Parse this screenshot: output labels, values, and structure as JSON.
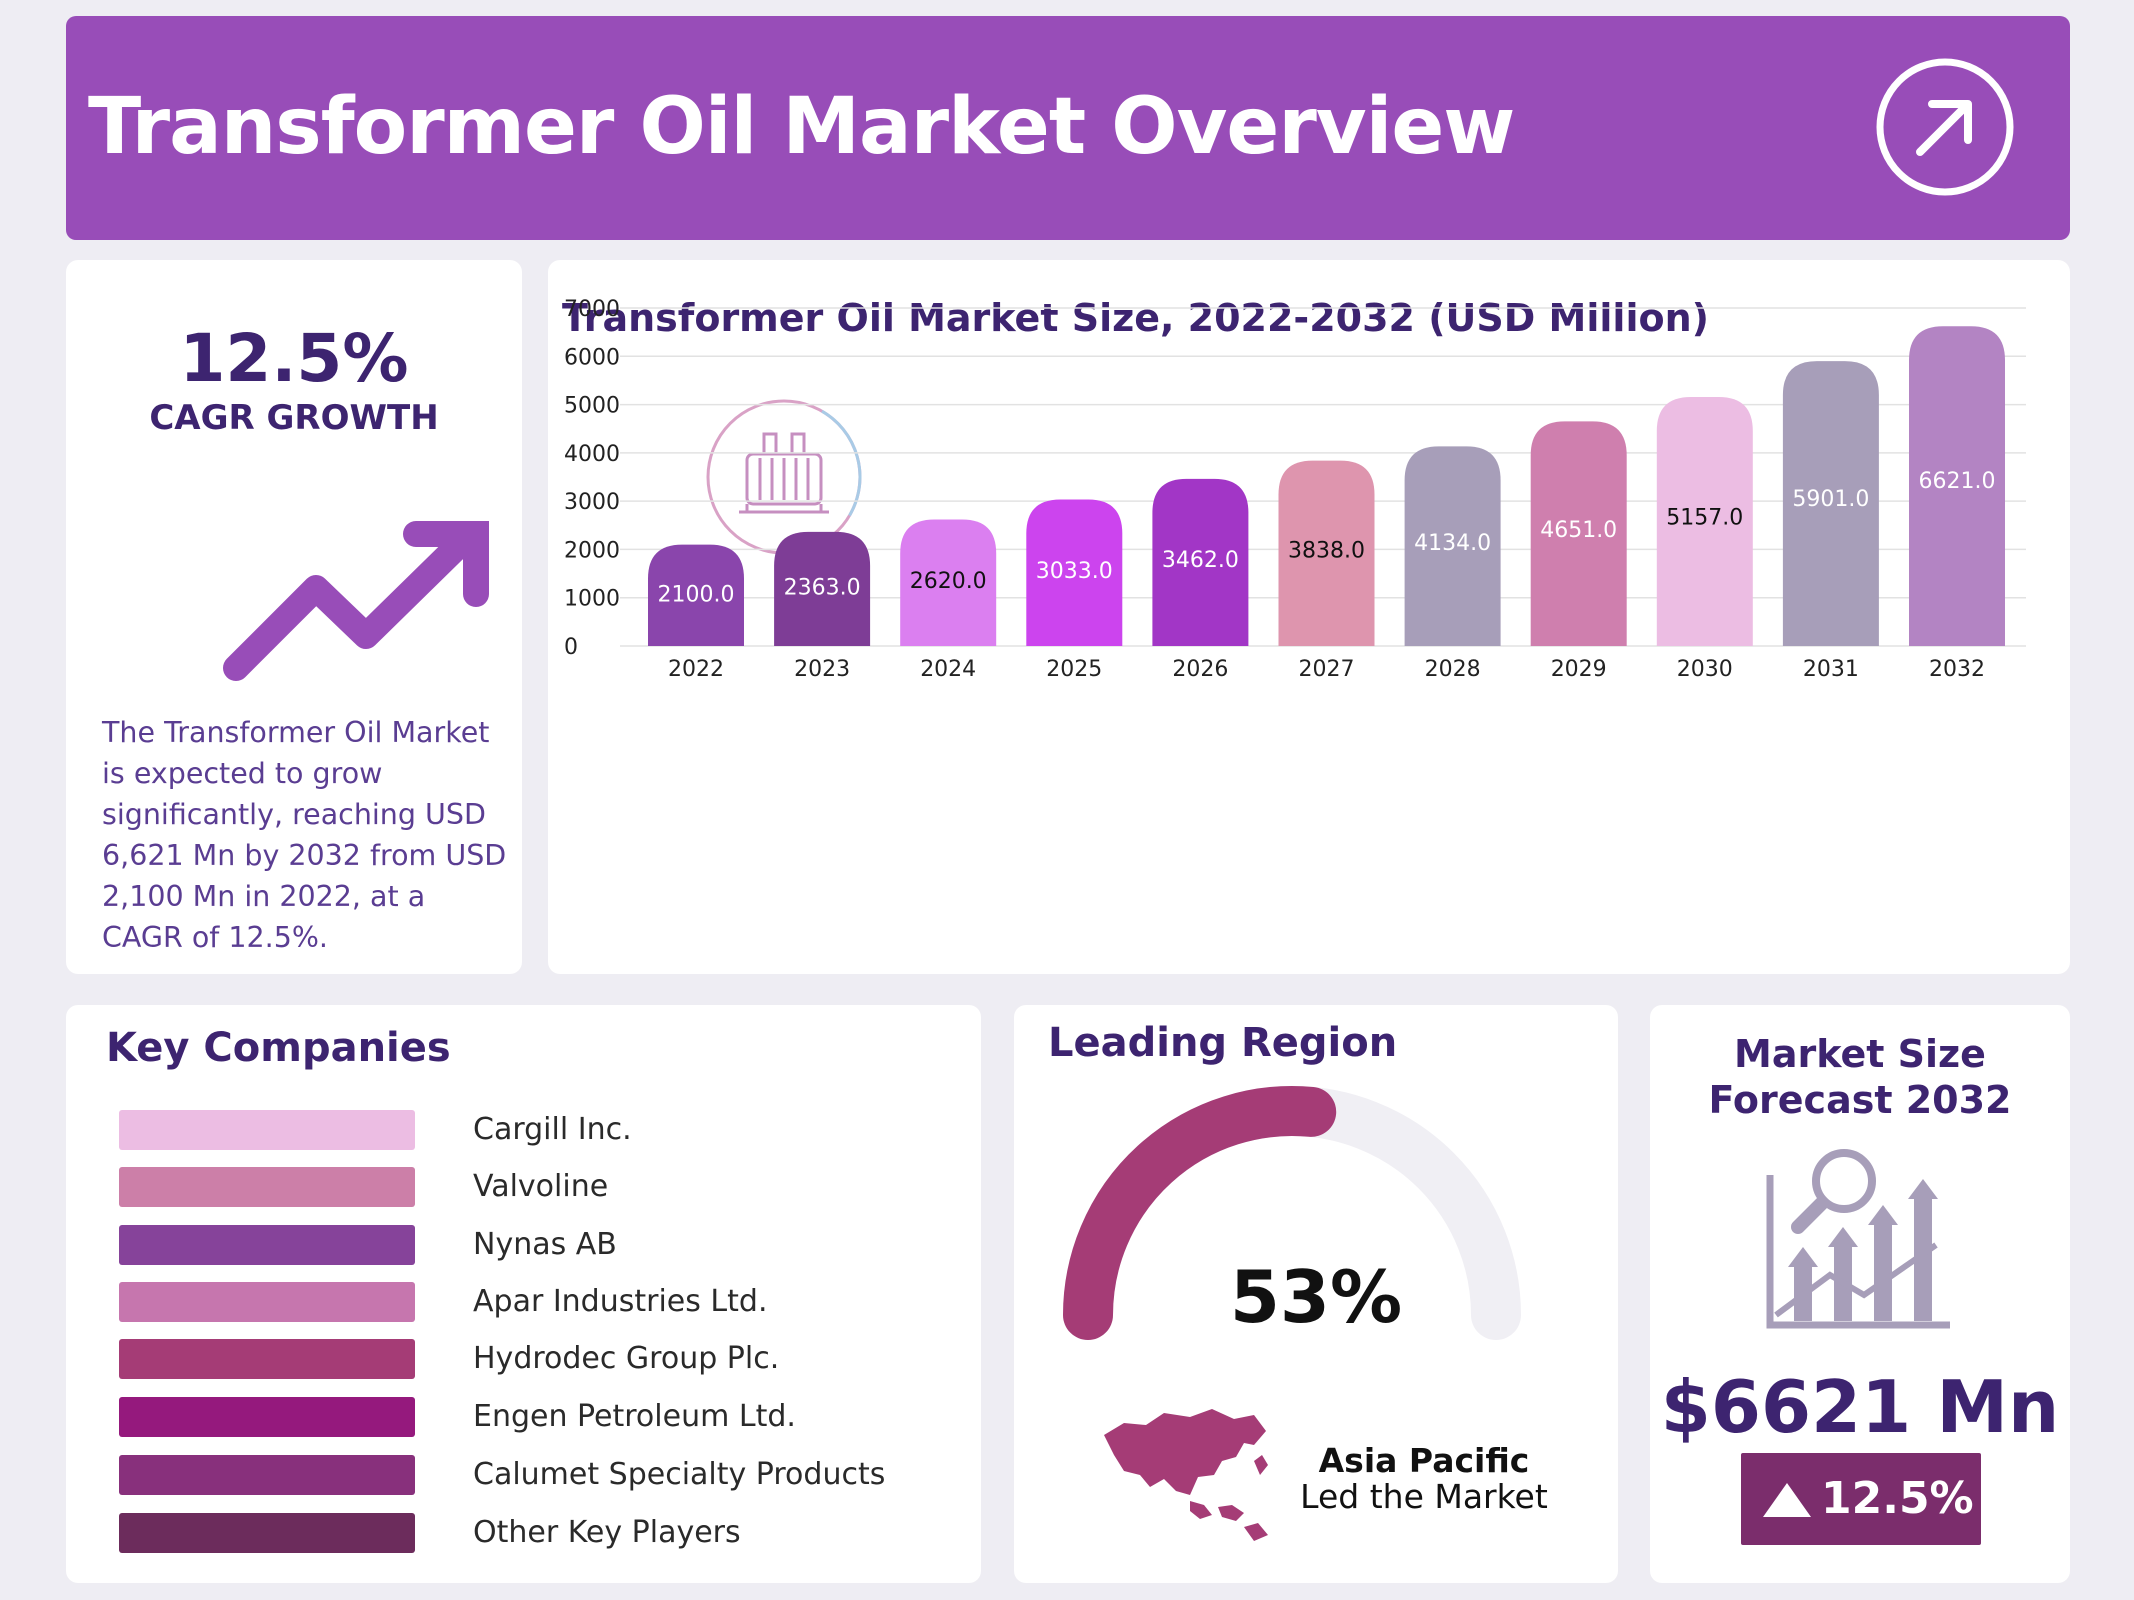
{
  "header": {
    "title": "Transformer Oil Market Overview",
    "icon": "arrow-up-right-circle-icon"
  },
  "cagr": {
    "value": "12.5%",
    "label": "CAGR GROWTH",
    "icon": "trend-up-arrow-icon",
    "description": "The Transformer Oil Market is expected to grow significantly, reaching USD 6,621 Mn by 2032 from USD 2,100 Mn in 2022, at a CAGR of 12.5%."
  },
  "chart_data": {
    "type": "bar",
    "title": "Transformer Oil Market Size, 2022-2032 (USD Million)",
    "xlabel": "",
    "ylabel": "",
    "categories": [
      "2022",
      "2023",
      "2024",
      "2025",
      "2026",
      "2027",
      "2028",
      "2029",
      "2030",
      "2031",
      "2032"
    ],
    "values": [
      2100.0,
      2363.0,
      2620.0,
      3033.0,
      3462.0,
      3838.0,
      4134.0,
      4651.0,
      5157.0,
      5901.0,
      6621.0
    ],
    "value_labels": [
      "2100.0",
      "2363.0",
      "2620.0",
      "3033.0",
      "3462.0",
      "3838.0",
      "4134.0",
      "4651.0",
      "5157.0",
      "5901.0",
      "6621.0"
    ],
    "colors": [
      "#8a45ac",
      "#7e3d96",
      "#db7ff0",
      "#cc44ee",
      "#a236c6",
      "#de95ae",
      "#a79eb9",
      "#cf7fae",
      "#ecbde3",
      "#a79eb9",
      "#b384c3"
    ],
    "label_colors": [
      "#ffffff",
      "#ffffff",
      "#111111",
      "#ffffff",
      "#ffffff",
      "#111111",
      "#ffffff",
      "#ffffff",
      "#111111",
      "#ffffff",
      "#ffffff"
    ],
    "ylim": [
      0,
      7000
    ],
    "yticks": [
      "0",
      "1000",
      "2000",
      "3000",
      "4000",
      "5000",
      "6000",
      "7000"
    ],
    "grid": true,
    "legend": "none"
  },
  "companies": {
    "title": "Key Companies",
    "items": [
      {
        "name": "Cargill Inc.",
        "color": "#ecbde3"
      },
      {
        "name": "Valvoline",
        "color": "#cc7fa8"
      },
      {
        "name": "Nynas AB",
        "color": "#86439a"
      },
      {
        "name": "Apar Industries Ltd.",
        "color": "#c676ae"
      },
      {
        "name": "Hydrodec Group Plc.",
        "color": "#a53c76"
      },
      {
        "name": "Engen Petroleum Ltd.",
        "color": "#95197d"
      },
      {
        "name": "Calumet Specialty Products",
        "color": "#88307c"
      },
      {
        "name": "Other Key Players",
        "color": "#6c2c5c"
      }
    ]
  },
  "region": {
    "title": "Leading Region",
    "share_percent": 53,
    "share_label": "53%",
    "name": "Asia Pacific",
    "subtitle": "Led the Market",
    "gauge_color": "#a53c76",
    "track_color": "#f0eff4",
    "icon": "asia-pacific-map-icon"
  },
  "forecast": {
    "title_line1": "Market Size",
    "title_line2": "Forecast 2032",
    "value": "$6621 Mn",
    "growth": "12.5%",
    "icon": "growth-analysis-chart-icon",
    "badge_icon": "triangle-up-icon"
  }
}
